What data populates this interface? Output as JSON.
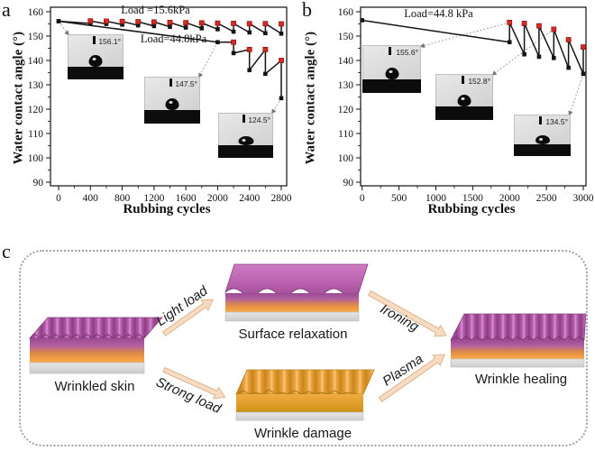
{
  "figure": {
    "panel_a_letter": "a",
    "panel_b_letter": "b",
    "panel_c_letter": "c"
  },
  "colors": {
    "marker_black": "#151515",
    "marker_red": "#d92b23",
    "line_black": "#151515",
    "wrinkle_purple": "#b55aab",
    "layer_orange": "#ef9738",
    "damage_orange": "#e8a236",
    "base_gray": "#d9d9d9",
    "arrow_fill": "#f7dcc3",
    "arrow_outline": "#e0b48e",
    "dashed_border": "#9aa6ae"
  },
  "chart_data": [
    {
      "id": "a",
      "type": "line",
      "xlabel": "Rubbing cycles",
      "ylabel": "Water contact angle (°)",
      "xlim": [
        0,
        2800
      ],
      "ylim": [
        90,
        160
      ],
      "xticks": [
        0,
        400,
        800,
        1200,
        1600,
        2000,
        2400,
        2800
      ],
      "xminor": [
        200,
        600,
        1000,
        1400,
        1800,
        2200,
        2600
      ],
      "yticks": [
        90,
        100,
        110,
        120,
        130,
        140,
        150,
        160
      ],
      "yminor": [
        95,
        105,
        115,
        125,
        135,
        145,
        155
      ],
      "grid": false,
      "annotations": [
        {
          "text": "Load =15.6kPa"
        },
        {
          "text": "Load=44.8kPa"
        }
      ],
      "series": [
        {
          "name": "Load =15.6kPa",
          "points": [
            [
              0,
              156.1,
              "k"
            ],
            [
              400,
              155.2,
              "k"
            ],
            [
              400,
              156.2,
              "r"
            ],
            [
              600,
              155.0,
              "k"
            ],
            [
              600,
              156.1,
              "r"
            ],
            [
              800,
              154.7,
              "k"
            ],
            [
              800,
              156.0,
              "r"
            ],
            [
              1000,
              154.4,
              "k"
            ],
            [
              1000,
              155.9,
              "r"
            ],
            [
              1200,
              154.1,
              "k"
            ],
            [
              1200,
              155.8,
              "r"
            ],
            [
              1400,
              153.8,
              "k"
            ],
            [
              1400,
              155.6,
              "r"
            ],
            [
              1600,
              153.5,
              "k"
            ],
            [
              1600,
              155.5,
              "r"
            ],
            [
              1800,
              153.2,
              "k"
            ],
            [
              1800,
              155.4,
              "r"
            ],
            [
              2000,
              152.8,
              "k"
            ],
            [
              2000,
              155.3,
              "r"
            ],
            [
              2200,
              151.8,
              "k"
            ],
            [
              2200,
              155.2,
              "r"
            ],
            [
              2400,
              151.5,
              "k"
            ],
            [
              2400,
              155.1,
              "r"
            ],
            [
              2600,
              151.2,
              "k"
            ],
            [
              2600,
              155.1,
              "r"
            ],
            [
              2800,
              151.0,
              "k"
            ],
            [
              2800,
              155.0,
              "r"
            ]
          ]
        },
        {
          "name": "Load=44.8kPa",
          "points": [
            [
              0,
              156.1,
              "k"
            ],
            [
              2000,
              147.5,
              "k"
            ],
            [
              2200,
              147.5,
              "r"
            ],
            [
              2200,
              143.0,
              "k"
            ],
            [
              2400,
              144.5,
              "r"
            ],
            [
              2400,
              136.0,
              "k"
            ],
            [
              2600,
              144.5,
              "r"
            ],
            [
              2600,
              134.5,
              "k"
            ],
            [
              2800,
              140.0,
              "r"
            ],
            [
              2800,
              124.5,
              "k"
            ]
          ]
        }
      ],
      "insets": [
        {
          "label": "156.1°",
          "target": {
            "x": 0,
            "y": 156.1
          }
        },
        {
          "label": "147.5°",
          "target": {
            "x": 2000,
            "y": 147.5
          }
        },
        {
          "label": "124.5°",
          "target": {
            "x": 2800,
            "y": 124.5
          }
        }
      ]
    },
    {
      "id": "b",
      "type": "line",
      "xlabel": "Rubbing cycles",
      "ylabel": "Water contact angle (°)",
      "xlim": [
        0,
        3000
      ],
      "ylim": [
        90,
        160
      ],
      "xticks": [
        0,
        500,
        1000,
        1500,
        2000,
        2500,
        3000
      ],
      "xminor": [
        250,
        750,
        1250,
        1750,
        2250,
        2750
      ],
      "yticks": [
        90,
        100,
        110,
        120,
        130,
        140,
        150,
        160
      ],
      "yminor": [
        95,
        105,
        115,
        125,
        135,
        145,
        155
      ],
      "grid": false,
      "annotations": [
        {
          "text": "Load=44.8 kPa"
        }
      ],
      "series": [
        {
          "name": "Load=44.8 kPa",
          "points": [
            [
              0,
              156.5,
              "k"
            ],
            [
              2000,
              147.5,
              "k"
            ],
            [
              2000,
              155.6,
              "r"
            ],
            [
              2200,
              142.5,
              "k"
            ],
            [
              2200,
              155.2,
              "r"
            ],
            [
              2400,
              141.5,
              "k"
            ],
            [
              2400,
              154.2,
              "r"
            ],
            [
              2600,
              141.0,
              "k"
            ],
            [
              2600,
              152.8,
              "r"
            ],
            [
              2800,
              137.0,
              "k"
            ],
            [
              2800,
              148.5,
              "r"
            ],
            [
              3000,
              134.5,
              "k"
            ],
            [
              3000,
              145.5,
              "r"
            ]
          ]
        }
      ],
      "insets": [
        {
          "label": "155.6°",
          "target": {
            "x": 2000,
            "y": 155.6
          }
        },
        {
          "label": "152.8°",
          "target": {
            "x": 2600,
            "y": 152.8
          }
        },
        {
          "label": "134.5°",
          "target": {
            "x": 3000,
            "y": 134.5
          }
        }
      ]
    }
  ],
  "panel_c": {
    "blocks": [
      {
        "id": "wrinkled-skin",
        "label": "Wrinkled skin"
      },
      {
        "id": "surface-relaxation",
        "label": "Surface relaxation"
      },
      {
        "id": "wrinkle-damage",
        "label": "Wrinkle damage"
      },
      {
        "id": "wrinkle-healing",
        "label": "Wrinkle healing"
      }
    ],
    "arrows": [
      {
        "id": "light-load",
        "label": "Light load"
      },
      {
        "id": "strong-load",
        "label": "Strong load"
      },
      {
        "id": "ironing",
        "label": "Ironing"
      },
      {
        "id": "plasma",
        "label": "Plasma"
      }
    ]
  }
}
